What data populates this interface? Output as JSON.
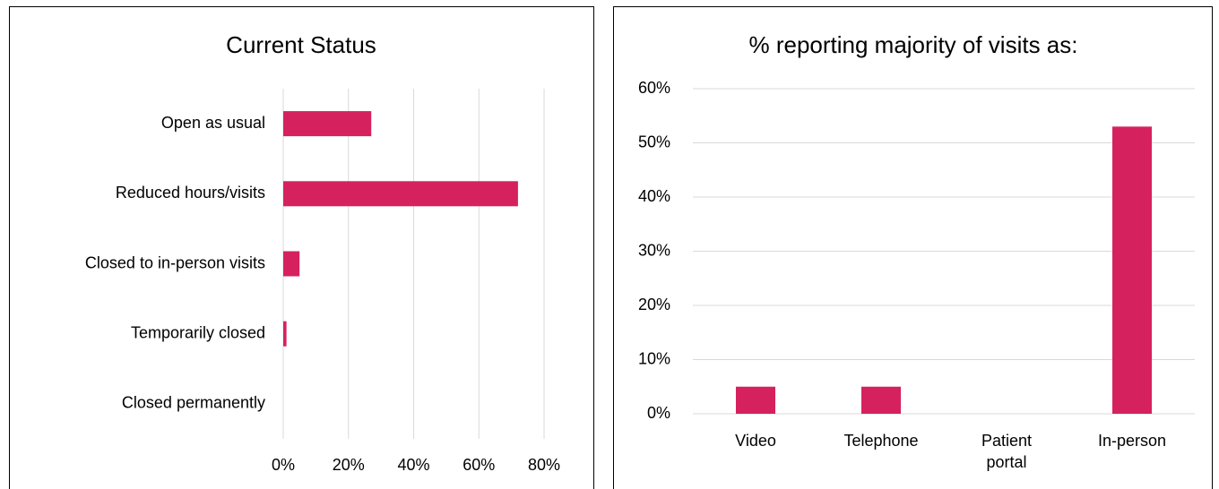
{
  "chart_data": [
    {
      "type": "barh",
      "title": "Current Status",
      "categories": [
        "Open as usual",
        "Reduced hours/visits",
        "Closed to in-person visits",
        "Temporarily closed",
        "Closed permanently"
      ],
      "values": [
        27,
        72,
        5,
        1,
        0
      ],
      "color": "#d6215f",
      "xlim": [
        0,
        80
      ],
      "xticks": [
        {
          "value": 0,
          "label": "0%"
        },
        {
          "value": 20,
          "label": "20%"
        },
        {
          "value": 40,
          "label": "40%"
        },
        {
          "value": 60,
          "label": "60%"
        },
        {
          "value": 80,
          "label": "80%"
        }
      ],
      "grid": true
    },
    {
      "type": "bar",
      "title": "% reporting majority of visits as:",
      "categories": [
        "Video",
        "Telephone",
        "Patient portal",
        "In-person"
      ],
      "values": [
        5,
        5,
        0,
        53
      ],
      "color": "#d6215f",
      "ylim": [
        0,
        60
      ],
      "yticks": [
        {
          "value": 0,
          "label": "0%"
        },
        {
          "value": 10,
          "label": "10%"
        },
        {
          "value": 20,
          "label": "20%"
        },
        {
          "value": 30,
          "label": "30%"
        },
        {
          "value": 40,
          "label": "40%"
        },
        {
          "value": 50,
          "label": "50%"
        },
        {
          "value": 60,
          "label": "60%"
        }
      ],
      "grid": true
    }
  ]
}
